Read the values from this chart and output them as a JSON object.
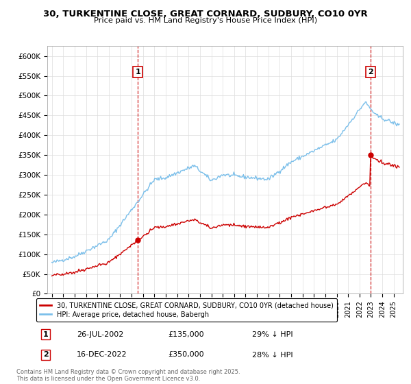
{
  "title": "30, TURKENTINE CLOSE, GREAT CORNARD, SUDBURY, CO10 0YR",
  "subtitle": "Price paid vs. HM Land Registry's House Price Index (HPI)",
  "ylabel_ticks": [
    "£0",
    "£50K",
    "£100K",
    "£150K",
    "£200K",
    "£250K",
    "£300K",
    "£350K",
    "£400K",
    "£450K",
    "£500K",
    "£550K",
    "£600K"
  ],
  "ytick_vals": [
    0,
    50000,
    100000,
    150000,
    200000,
    250000,
    300000,
    350000,
    400000,
    450000,
    500000,
    550000,
    600000
  ],
  "ylim": [
    0,
    625000
  ],
  "hpi_color": "#7bbfea",
  "price_color": "#cc0000",
  "purchase1_date": 2002.56,
  "purchase1_price": 135000,
  "purchase2_date": 2022.96,
  "purchase2_price": 350000,
  "legend_label1": "30, TURKENTINE CLOSE, GREAT CORNARD, SUDBURY, CO10 0YR (detached house)",
  "legend_label2": "HPI: Average price, detached house, Babergh",
  "annotation1_date": "26-JUL-2002",
  "annotation1_price": "£135,000",
  "annotation1_note": "29% ↓ HPI",
  "annotation2_date": "16-DEC-2022",
  "annotation2_price": "£350,000",
  "annotation2_note": "28% ↓ HPI",
  "footer": "Contains HM Land Registry data © Crown copyright and database right 2025.\nThis data is licensed under the Open Government Licence v3.0.",
  "grid_color": "#dddddd",
  "xlim_left": 1994.6,
  "xlim_right": 2025.8
}
